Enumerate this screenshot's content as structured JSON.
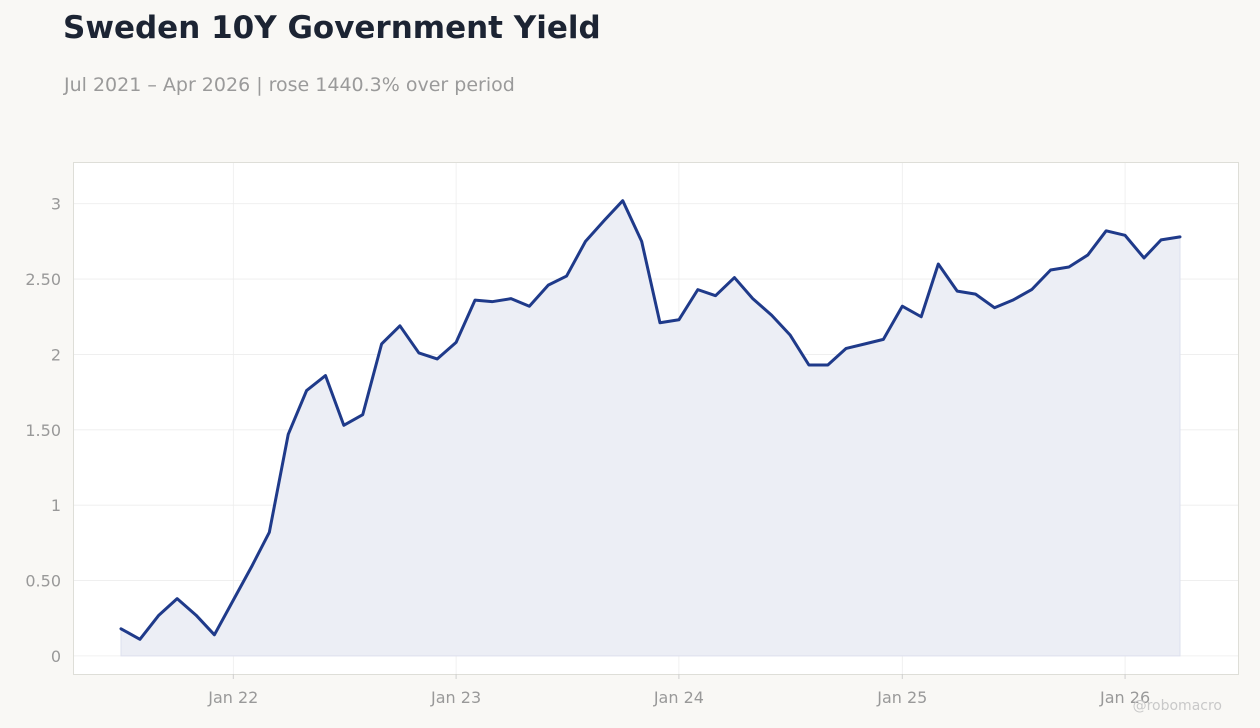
{
  "header": {
    "title": "Sweden 10Y Government Yield",
    "subtitle": "Jul 2021 – Apr 2026 | rose 1440.3% over period"
  },
  "watermark": "@robomacro",
  "colors": {
    "background": "#f9f8f5",
    "plot_background": "#ffffff",
    "line": "#1f3a8a",
    "area_fill": "#eceef5",
    "grid": "#ededed",
    "axis_text": "#999999"
  },
  "chart_data": {
    "type": "area",
    "title": "Sweden 10Y Government Yield",
    "subtitle": "Jul 2021 – Apr 2026 | rose 1440.3% over period",
    "xlabel": "",
    "ylabel": "",
    "ylim": [
      -0.12,
      3.27
    ],
    "xlim": [
      "2021-04-15",
      "2026-07-05"
    ],
    "grid": true,
    "legend": "none",
    "y_ticks": [
      0,
      0.5,
      1,
      1.5,
      2,
      2.5,
      3
    ],
    "y_tick_labels": [
      "0",
      "0.50",
      "1",
      "1.50",
      "2",
      "2.50",
      "3"
    ],
    "x_ticks": [
      "2022-01-01",
      "2023-01-01",
      "2024-01-01",
      "2025-01-01",
      "2026-01-01"
    ],
    "x_tick_labels": [
      "Jan 22",
      "Jan 23",
      "Jan 24",
      "Jan 25",
      "Jan 26"
    ],
    "series": [
      {
        "x": [
          "2021-07-01",
          "2021-08-01",
          "2021-09-01",
          "2021-10-01",
          "2021-11-01",
          "2021-12-01",
          "2022-01-01",
          "2022-02-01",
          "2022-03-01",
          "2022-04-01",
          "2022-05-01",
          "2022-06-01",
          "2022-07-01",
          "2022-08-01",
          "2022-09-01",
          "2022-10-01",
          "2022-11-01",
          "2022-12-01",
          "2023-01-01",
          "2023-02-01",
          "2023-03-01",
          "2023-04-01",
          "2023-05-01",
          "2023-06-01",
          "2023-07-01",
          "2023-08-01",
          "2023-09-01",
          "2023-10-01",
          "2023-11-01",
          "2023-12-01",
          "2024-01-01",
          "2024-02-01",
          "2024-03-01",
          "2024-04-01",
          "2024-05-01",
          "2024-06-01",
          "2024-07-01",
          "2024-08-01",
          "2024-09-01",
          "2024-10-01",
          "2024-11-01",
          "2024-12-01",
          "2025-01-01",
          "2025-02-01",
          "2025-03-01",
          "2025-04-01",
          "2025-05-01",
          "2025-06-01",
          "2025-07-01",
          "2025-08-01",
          "2025-09-01",
          "2025-10-01",
          "2025-11-01",
          "2025-12-01",
          "2026-01-01",
          "2026-02-01",
          "2026-03-01",
          "2026-04-01"
        ],
        "y": [
          0.18,
          0.11,
          0.27,
          0.38,
          0.27,
          0.14,
          0.37,
          0.6,
          0.82,
          1.47,
          1.76,
          1.86,
          1.53,
          1.6,
          2.07,
          2.19,
          2.01,
          1.97,
          2.08,
          2.36,
          2.35,
          2.37,
          2.32,
          2.46,
          2.52,
          2.75,
          2.89,
          3.02,
          2.75,
          2.21,
          2.23,
          2.43,
          2.39,
          2.51,
          2.37,
          2.26,
          2.13,
          1.93,
          1.93,
          2.04,
          2.07,
          2.1,
          2.32,
          2.25,
          2.6,
          2.42,
          2.4,
          2.31,
          2.36,
          2.43,
          2.56,
          2.58,
          2.66,
          2.82,
          2.79,
          2.64,
          2.76,
          2.78
        ]
      }
    ]
  }
}
